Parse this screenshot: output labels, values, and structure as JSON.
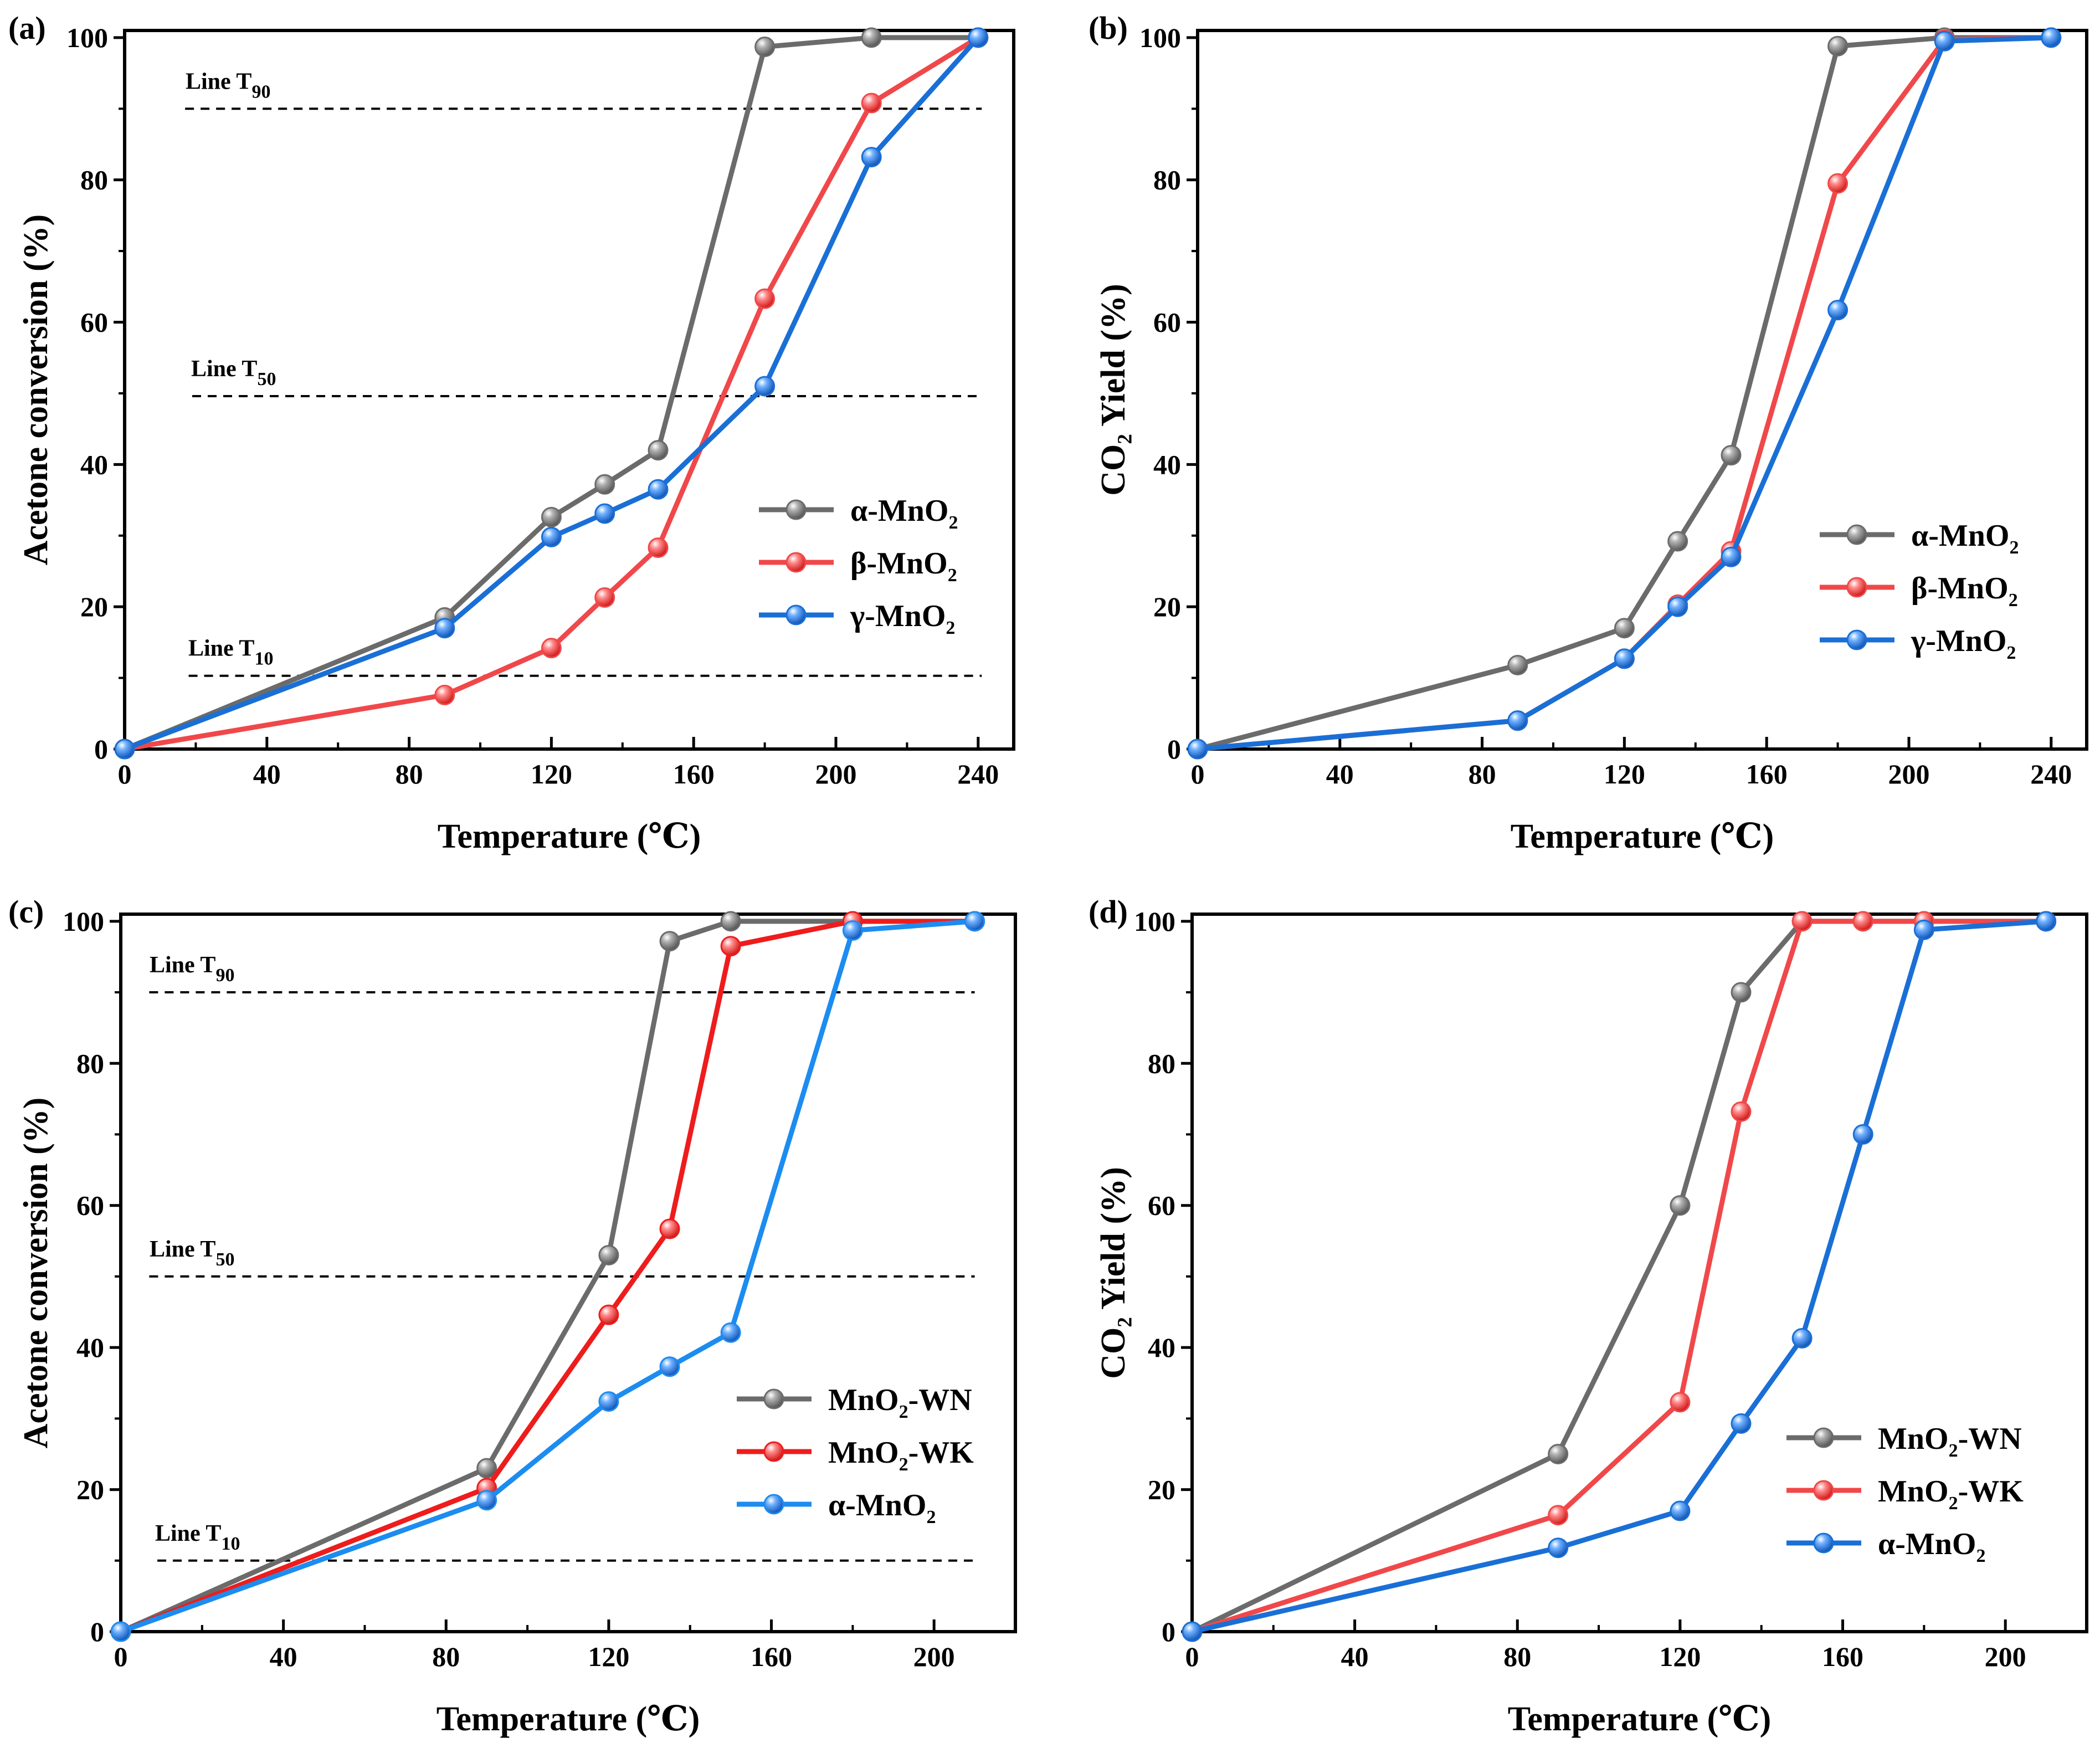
{
  "figure_labels": [
    "(a)",
    "(b)",
    "(c)",
    "(d)"
  ],
  "chart_data": [
    {
      "type": "line",
      "panel": "(a)",
      "xlabel": "Temperature (℃)",
      "ylabel": "Acetone conversion (%)",
      "xlim": [
        0,
        250
      ],
      "ylim": [
        0,
        101
      ],
      "xticks": [
        0,
        40,
        80,
        120,
        160,
        200,
        240
      ],
      "yticks": [
        0,
        20,
        40,
        60,
        80,
        100
      ],
      "legend_position": "center-right",
      "series": [
        {
          "name": "α-MnO",
          "sub": "2",
          "color": "#6b6b6b",
          "x": [
            0,
            90,
            120,
            135,
            150,
            180,
            210,
            240
          ],
          "y": [
            0,
            18.5,
            32.6,
            37.2,
            42.0,
            98.7,
            100,
            100
          ]
        },
        {
          "name": "β-MnO",
          "sub": "2",
          "color": "#f0484a",
          "x": [
            0,
            90,
            120,
            135,
            150,
            180,
            210,
            240
          ],
          "y": [
            0,
            7.6,
            14.2,
            21.3,
            28.3,
            63.3,
            90.8,
            100
          ]
        },
        {
          "name": "γ-MnO",
          "sub": "2",
          "color": "#1a6fd6",
          "x": [
            0,
            90,
            120,
            135,
            150,
            180,
            210,
            240
          ],
          "y": [
            0,
            17.0,
            29.8,
            33.1,
            36.5,
            51.0,
            83.2,
            100
          ]
        }
      ],
      "ref_lines": [
        {
          "name": "Line T",
          "sub": "90",
          "y": 90,
          "x_range": [
            17,
            241
          ]
        },
        {
          "name": "Line T",
          "sub": "50",
          "y": 49.6,
          "x_range": [
            19,
            241
          ]
        },
        {
          "name": "Line T",
          "sub": "10",
          "y": 10.3,
          "x_range": [
            18,
            241
          ]
        }
      ]
    },
    {
      "type": "line",
      "panel": "(b)",
      "xlabel": "Temperature (℃)",
      "ylabel": "CO₂ Yield (%)",
      "xlim": [
        0,
        250
      ],
      "ylim": [
        0,
        101
      ],
      "xticks": [
        0,
        40,
        80,
        120,
        160,
        200,
        240
      ],
      "yticks": [
        0,
        20,
        40,
        60,
        80,
        100
      ],
      "legend_position": "lower-right",
      "series": [
        {
          "name": "α-MnO",
          "sub": "2",
          "color": "#6b6b6b",
          "x": [
            0,
            90,
            120,
            135,
            150,
            180,
            210,
            240
          ],
          "y": [
            0,
            11.8,
            17.0,
            29.2,
            41.3,
            98.8,
            100,
            100
          ]
        },
        {
          "name": "β-MnO",
          "sub": "2",
          "color": "#f0484a",
          "x": [
            0,
            90,
            120,
            135,
            150,
            180,
            210,
            240
          ],
          "y": [
            0,
            4.0,
            12.7,
            20.3,
            27.8,
            79.5,
            99.7,
            100
          ]
        },
        {
          "name": "γ-MnO",
          "sub": "2",
          "color": "#1a6fd6",
          "x": [
            0,
            90,
            120,
            135,
            150,
            180,
            210,
            240
          ],
          "y": [
            0,
            4.0,
            12.7,
            20.0,
            27.0,
            61.7,
            99.5,
            100
          ]
        }
      ],
      "ref_lines": []
    },
    {
      "type": "line",
      "panel": "(c)",
      "xlabel": "Temperature (℃)",
      "ylabel": "Acetone conversion (%)",
      "xlim": [
        0,
        220
      ],
      "ylim": [
        0,
        101
      ],
      "xticks": [
        0,
        40,
        80,
        120,
        160,
        200
      ],
      "yticks": [
        0,
        20,
        40,
        60,
        80,
        100
      ],
      "legend_position": "center-right",
      "series": [
        {
          "name": "MnO",
          "sub": "2",
          "suffix": "-WN",
          "color": "#6b6b6b",
          "x": [
            0,
            90,
            120,
            135,
            150,
            180,
            210
          ],
          "y": [
            0,
            23.0,
            53.0,
            97.2,
            100,
            100,
            100
          ]
        },
        {
          "name": "MnO",
          "sub": "2",
          "suffix": "-WK",
          "color": "#ee1c1c",
          "x": [
            0,
            90,
            120,
            135,
            150,
            180,
            210
          ],
          "y": [
            0,
            20.2,
            44.6,
            56.7,
            96.5,
            100,
            100
          ]
        },
        {
          "name": "α-MnO",
          "sub": "2",
          "suffix": "",
          "color": "#1c8cf0",
          "x": [
            0,
            90,
            120,
            135,
            150,
            180,
            210
          ],
          "y": [
            0,
            18.5,
            32.4,
            37.3,
            42.1,
            98.7,
            100
          ]
        }
      ],
      "ref_lines": [
        {
          "name": "Line T",
          "sub": "90",
          "y": 90,
          "x_range": [
            7,
            210
          ]
        },
        {
          "name": "Line T",
          "sub": "50",
          "y": 50,
          "x_range": [
            7,
            210
          ]
        },
        {
          "name": "Line T",
          "sub": "10",
          "y": 10,
          "x_range": [
            9,
            210
          ]
        }
      ]
    },
    {
      "type": "line",
      "panel": "(d)",
      "xlabel": "Temperature (℃)",
      "ylabel": "CO₂ Yield (%)",
      "xlim": [
        0,
        220
      ],
      "ylim": [
        0,
        101
      ],
      "xticks": [
        0,
        40,
        80,
        120,
        160,
        200
      ],
      "yticks": [
        0,
        20,
        40,
        60,
        80,
        100
      ],
      "legend_position": "lower-right",
      "series": [
        {
          "name": "MnO",
          "sub": "2",
          "suffix": "-WN",
          "color": "#6b6b6b",
          "x": [
            0,
            90,
            120,
            135,
            150,
            165,
            180,
            210
          ],
          "y": [
            0,
            25.0,
            60.0,
            90.0,
            100,
            100,
            100,
            100
          ]
        },
        {
          "name": "MnO",
          "sub": "2",
          "suffix": "-WK",
          "color": "#f0484a",
          "x": [
            0,
            90,
            120,
            135,
            150,
            165,
            180,
            210
          ],
          "y": [
            0,
            16.4,
            32.3,
            73.2,
            100,
            100,
            100,
            100
          ]
        },
        {
          "name": "α-MnO",
          "sub": "2",
          "suffix": "",
          "color": "#1a6fd6",
          "x": [
            0,
            90,
            120,
            135,
            150,
            165,
            180,
            210
          ],
          "y": [
            0,
            11.8,
            17.0,
            29.3,
            41.3,
            70.0,
            98.8,
            100
          ]
        }
      ],
      "ref_lines": []
    }
  ]
}
